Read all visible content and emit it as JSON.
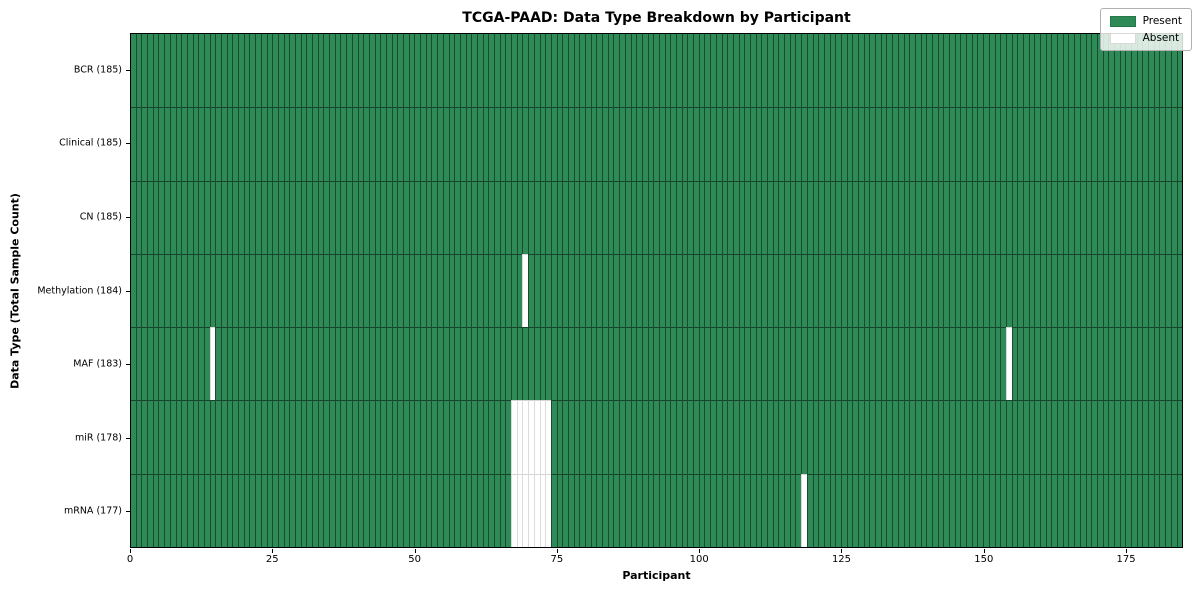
{
  "chart_data": {
    "type": "heatmap",
    "title": "TCGA-PAAD: Data Type Breakdown by Participant",
    "xlabel": "Participant",
    "ylabel": "Data Type (Total Sample Count)",
    "x_range": [
      0,
      185
    ],
    "n_participants": 185,
    "x_ticks": [
      0,
      25,
      50,
      75,
      100,
      125,
      150,
      175
    ],
    "grid": "cell-borders",
    "legend_position": "upper right",
    "colors": {
      "present": "#2e8b57",
      "absent": "#ffffff"
    },
    "rows": [
      {
        "label": "BCR (185)",
        "total": 185,
        "absent_participants": []
      },
      {
        "label": "Clinical (185)",
        "total": 185,
        "absent_participants": []
      },
      {
        "label": "CN (185)",
        "total": 185,
        "absent_participants": []
      },
      {
        "label": "Methylation (184)",
        "total": 184,
        "absent_participants": [
          69
        ]
      },
      {
        "label": "MAF (183)",
        "total": 183,
        "absent_participants": [
          14,
          154
        ]
      },
      {
        "label": "miR (178)",
        "total": 178,
        "absent_participants": [
          67,
          68,
          69,
          70,
          71,
          72,
          73
        ]
      },
      {
        "label": "mRNA (177)",
        "total": 177,
        "absent_participants": [
          67,
          68,
          69,
          70,
          71,
          72,
          73,
          118
        ]
      }
    ],
    "legend": [
      {
        "label": "Present",
        "color": "#2e8b57"
      },
      {
        "label": "Absent",
        "color": "#ffffff"
      }
    ]
  }
}
